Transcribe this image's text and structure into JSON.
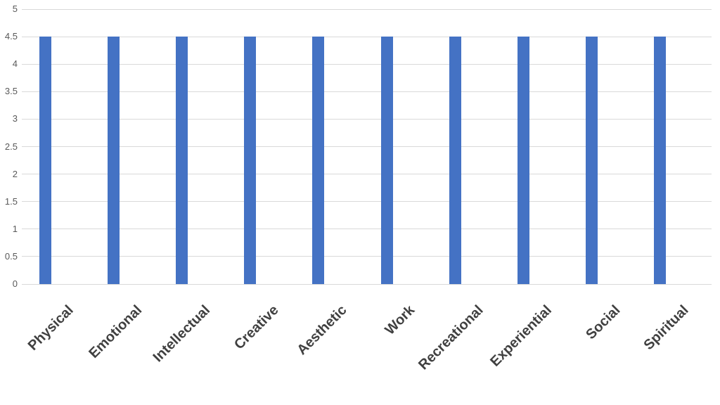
{
  "chart_data": {
    "type": "bar",
    "title": "",
    "xlabel": "",
    "ylabel": "",
    "categories": [
      "Physical",
      "Emotional",
      "Intellectual",
      "Creative",
      "Aesthetic",
      "Work",
      "Recreational",
      "Experiential",
      "Social",
      "Spiritual"
    ],
    "values": [
      4.5,
      4.5,
      4.5,
      4.5,
      4.5,
      4.5,
      4.5,
      4.5,
      4.5,
      4.5
    ],
    "ylim": [
      0,
      5
    ],
    "ytick_step": 0.5,
    "ytick_labels": [
      "0",
      "0.5",
      "1",
      "1.5",
      "2",
      "2.5",
      "3",
      "3.5",
      "4",
      "4.5",
      "5"
    ],
    "grid": true,
    "legend": false,
    "x_label_rotation_deg": 45,
    "colors": {
      "bar": "#4472C4",
      "gridline": "#D9D9D9",
      "y_tick_text": "#595959",
      "x_tick_text": "#404040",
      "background": "#FFFFFF"
    }
  }
}
